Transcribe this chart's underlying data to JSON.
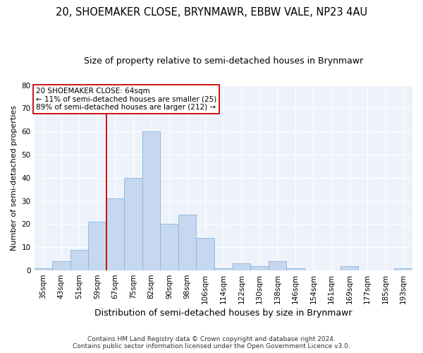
{
  "title": "20, SHOEMAKER CLOSE, BRYNMAWR, EBBW VALE, NP23 4AU",
  "subtitle": "Size of property relative to semi-detached houses in Brynmawr",
  "xlabel": "Distribution of semi-detached houses by size in Brynmawr",
  "ylabel": "Number of semi-detached properties",
  "categories": [
    "35sqm",
    "43sqm",
    "51sqm",
    "59sqm",
    "67sqm",
    "75sqm",
    "82sqm",
    "90sqm",
    "98sqm",
    "106sqm",
    "114sqm",
    "122sqm",
    "130sqm",
    "138sqm",
    "146sqm",
    "154sqm",
    "161sqm",
    "169sqm",
    "177sqm",
    "185sqm",
    "193sqm"
  ],
  "values": [
    1,
    4,
    9,
    21,
    31,
    40,
    60,
    20,
    24,
    14,
    1,
    3,
    2,
    4,
    1,
    0,
    0,
    2,
    0,
    0,
    1
  ],
  "bar_color": "#c5d8f0",
  "bar_edge_color": "#8ab4d8",
  "bar_linewidth": 0.6,
  "highlight_line_color": "#cc0000",
  "annotation_line1": "20 SHOEMAKER CLOSE: 64sqm",
  "annotation_line2": "← 11% of semi-detached houses are smaller (25)",
  "annotation_line3": "89% of semi-detached houses are larger (212) →",
  "annotation_box_color": "#ffffff",
  "annotation_box_edgecolor": "#cc0000",
  "ylim": [
    0,
    80
  ],
  "yticks": [
    0,
    10,
    20,
    30,
    40,
    50,
    60,
    70,
    80
  ],
  "background_color": "#eef2fb",
  "footer": "Contains HM Land Registry data © Crown copyright and database right 2024.\nContains public sector information licensed under the Open Government Licence v3.0.",
  "title_fontsize": 10.5,
  "subtitle_fontsize": 9,
  "xlabel_fontsize": 9,
  "ylabel_fontsize": 8,
  "tick_fontsize": 7.5,
  "footer_fontsize": 6.5
}
